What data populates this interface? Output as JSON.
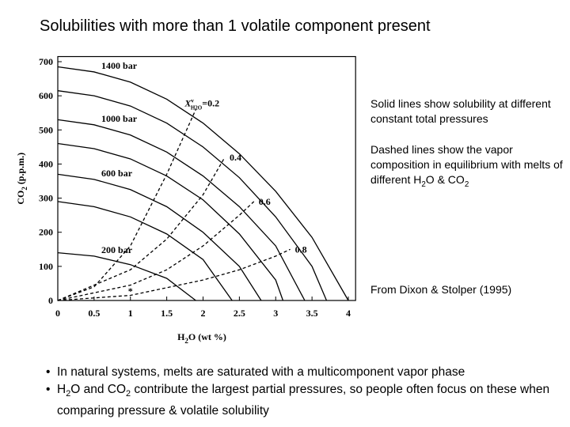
{
  "title": "Solubilities with more than 1 volatile component present",
  "chart_data": {
    "type": "line",
    "xlabel": [
      "H",
      "2",
      "O  (wt %)"
    ],
    "ylabel": [
      "CO",
      "2",
      " (p.p.m.)"
    ],
    "xlim": [
      0,
      4.1
    ],
    "ylim": [
      0,
      715
    ],
    "xticks": [
      0,
      0.5,
      1,
      1.5,
      2,
      2.5,
      3,
      3.5,
      4
    ],
    "yticks": [
      0,
      100,
      200,
      300,
      400,
      500,
      600,
      700
    ],
    "isopleth_prefix": {
      "symbol": "X",
      "sup": "v",
      "sub": "H2O",
      "equals": "="
    },
    "marker": {
      "x": 1,
      "y": 42,
      "label": "*"
    },
    "series": [
      {
        "name": "1400 bar",
        "style": "solid",
        "color": "#000",
        "x": [
          0,
          0.5,
          1,
          1.5,
          2,
          2.5,
          3,
          3.5,
          4
        ],
        "values": [
          685,
          670,
          640,
          590,
          520,
          430,
          320,
          185,
          0
        ]
      },
      {
        "style": "solid",
        "color": "#000",
        "x": [
          0,
          0.5,
          1,
          1.5,
          2,
          2.5,
          3,
          3.5,
          3.7
        ],
        "values": [
          615,
          600,
          570,
          520,
          450,
          360,
          245,
          100,
          0
        ]
      },
      {
        "name": "1000  bar",
        "style": "solid",
        "color": "#000",
        "x": [
          0,
          0.5,
          1,
          1.5,
          2,
          2.5,
          3,
          3.4
        ],
        "values": [
          530,
          515,
          485,
          435,
          365,
          275,
          160,
          0
        ]
      },
      {
        "style": "solid",
        "color": "#000",
        "x": [
          0,
          0.5,
          1,
          1.5,
          2,
          2.5,
          3,
          3.1
        ],
        "values": [
          460,
          445,
          415,
          365,
          295,
          195,
          60,
          0
        ]
      },
      {
        "name": "600  bar",
        "style": "solid",
        "color": "#000",
        "x": [
          0,
          0.5,
          1,
          1.5,
          2,
          2.5,
          2.8
        ],
        "values": [
          370,
          355,
          325,
          275,
          200,
          100,
          0
        ]
      },
      {
        "style": "solid",
        "color": "#000",
        "x": [
          0,
          0.5,
          1,
          1.5,
          2,
          2.4
        ],
        "values": [
          290,
          275,
          245,
          195,
          120,
          0
        ]
      },
      {
        "name": "200  bar",
        "style": "solid",
        "color": "#000",
        "x": [
          0,
          0.5,
          1,
          1.5,
          1.9
        ],
        "values": [
          140,
          130,
          105,
          65,
          0
        ]
      },
      {
        "name": "0.2",
        "style": "dashed",
        "color": "#000",
        "x": [
          0,
          0.5,
          1,
          1.5,
          1.9
        ],
        "values": [
          0,
          40,
          160,
          370,
          560
        ]
      },
      {
        "name": "0.4",
        "style": "dashed",
        "color": "#000",
        "x": [
          0,
          1,
          1.5,
          2,
          2.3
        ],
        "values": [
          0,
          90,
          180,
          310,
          420
        ]
      },
      {
        "name": "0.6",
        "style": "dashed",
        "color": "#000",
        "x": [
          0,
          1,
          1.5,
          2,
          2.5,
          2.7
        ],
        "values": [
          0,
          45,
          90,
          160,
          250,
          290
        ]
      },
      {
        "name": "0.8",
        "style": "dashed",
        "color": "#000",
        "x": [
          0,
          1,
          2,
          2.5,
          3,
          3.2
        ],
        "values": [
          0,
          15,
          60,
          90,
          130,
          150
        ]
      }
    ]
  },
  "notes": [
    [
      "Solid lines show solubility at different constant total pressures"
    ],
    [
      "Dashed lines show the vapor composition in equilibrium with melts of different H",
      "2",
      "O & CO",
      "2"
    ],
    [
      "From Dixon & Stolper (1995)"
    ]
  ],
  "bullets": [
    [
      "In natural systems, melts are saturated with a multicomponent vapor phase"
    ],
    [
      "H",
      "2",
      "O and CO",
      "2",
      " contribute the largest partial pressures, so people often focus on these when comparing pressure & volatile solubility"
    ]
  ]
}
